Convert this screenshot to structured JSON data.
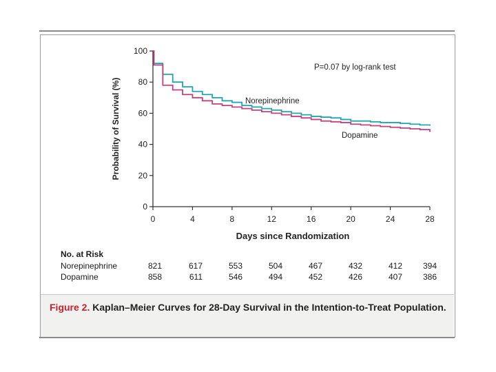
{
  "chart_data": {
    "type": "line",
    "title": "",
    "xlabel": "Days since Randomization",
    "ylabel": "Probability of Survival (%)",
    "xlim": [
      0,
      28
    ],
    "ylim": [
      0,
      100
    ],
    "xticks": [
      "0",
      "4",
      "8",
      "12",
      "16",
      "20",
      "24",
      "28"
    ],
    "yticks": [
      "0",
      "20",
      "40",
      "60",
      "80",
      "100"
    ],
    "annotation": "P=0.07 by log-rank test",
    "series": [
      {
        "name": "Norepinephrine",
        "color": "#1fa6b0",
        "x": [
          0,
          0.1,
          1,
          2,
          3,
          4,
          5,
          6,
          7,
          8,
          9,
          10,
          11,
          12,
          13,
          14,
          15,
          16,
          17,
          18,
          19,
          20,
          21,
          22,
          23,
          24,
          25,
          26,
          27,
          28
        ],
        "y": [
          100,
          92,
          85,
          80,
          77,
          74,
          72,
          70,
          68,
          67,
          65,
          64,
          63,
          62,
          61,
          60,
          59,
          58,
          57.5,
          57,
          56,
          55,
          55,
          54.5,
          54,
          54,
          53.5,
          53,
          52.5,
          52
        ]
      },
      {
        "name": "Dopamine",
        "color": "#c2407e",
        "x": [
          0,
          0.1,
          1,
          2,
          3,
          4,
          5,
          6,
          7,
          8,
          9,
          10,
          11,
          12,
          13,
          14,
          15,
          16,
          17,
          18,
          19,
          20,
          21,
          22,
          23,
          24,
          25,
          26,
          27,
          28
        ],
        "y": [
          100,
          91,
          78,
          75,
          72,
          70,
          68,
          66,
          65,
          64,
          63,
          62,
          61,
          60,
          59,
          58,
          57,
          56,
          55,
          54.5,
          54,
          53,
          52.5,
          52,
          51.5,
          51,
          50.5,
          50,
          49.5,
          48
        ]
      }
    ],
    "series_labels": [
      "Norepinephrine",
      "Dopamine"
    ]
  },
  "risk_table": {
    "title": "No. at Risk",
    "rows": [
      {
        "name": "Norepinephrine",
        "values": [
          "821",
          "617",
          "553",
          "504",
          "467",
          "432",
          "412",
          "394"
        ]
      },
      {
        "name": "Dopamine",
        "values": [
          "858",
          "611",
          "546",
          "494",
          "452",
          "426",
          "407",
          "386"
        ]
      }
    ]
  },
  "caption": {
    "label": "Figure 2.",
    "text": "Kaplan–Meier Curves for 28-Day Survival in the Intention-to-Treat Population."
  }
}
